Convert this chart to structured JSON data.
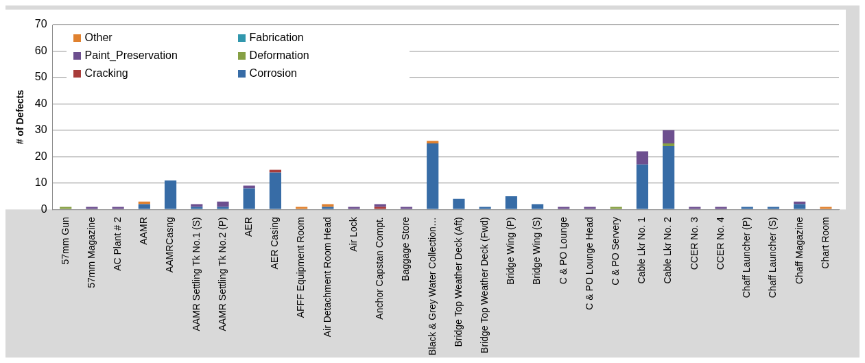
{
  "chart_data": {
    "type": "bar",
    "stacked": true,
    "ylabel": "# of Defects",
    "ylim": [
      0,
      70
    ],
    "yticks": [
      0,
      10,
      20,
      30,
      40,
      50,
      60,
      70
    ],
    "grid": "y",
    "legend": "top left",
    "categories": [
      "57mm Gun",
      "57mm Magazine",
      "AC Plant # 2",
      "AAMR",
      "AAMRCasng",
      "AAMR Settling Tk No.1 (S)",
      "AAMR Settling Tk No.2 (P)",
      "AER",
      "AER Casing",
      "AFFF Equipment Room",
      "Air Detachment Room Head",
      "Air Lock",
      "Anchor Capstan Compt.",
      "Baggage Store",
      "Black & Grey Water Collection…",
      "Bridge Top Weather Deck (Aft)",
      "Bridge Top Weather Deck (Fwd)",
      "Bridge Wing (P)",
      "Bridge Wing (S)",
      "C & PO Lounge",
      "C & PO Lounge Head",
      "C & PO Servery",
      "Cable Lkr No. 1",
      "Cable Lkr No. 2",
      "CCER No. 3",
      "CCER No. 4",
      "Chaff Launcher (P)",
      "Chaff Launcher (S)",
      "Chaff Magazine",
      "Chart Room"
    ],
    "series": [
      {
        "name": "Corrosion",
        "color": "#376ca6",
        "values": [
          0,
          0,
          0,
          2,
          11,
          1,
          1,
          8,
          14,
          0,
          1,
          0,
          0,
          0,
          25,
          4,
          1,
          5,
          2,
          0,
          0,
          0,
          17,
          24,
          0,
          0,
          1,
          1,
          2,
          0
        ]
      },
      {
        "name": "Cracking",
        "color": "#a83c3a",
        "values": [
          0,
          0,
          0,
          0,
          0,
          0,
          0,
          0,
          1,
          0,
          0,
          0,
          1,
          0,
          0,
          0,
          0,
          0,
          0,
          0,
          0,
          0,
          0,
          0,
          0,
          0,
          0,
          0,
          0,
          0
        ]
      },
      {
        "name": "Deformation",
        "color": "#86a044",
        "values": [
          1,
          0,
          0,
          0,
          0,
          0,
          0,
          0,
          0,
          0,
          0,
          0,
          0,
          0,
          0,
          0,
          0,
          0,
          0,
          0,
          0,
          1,
          0,
          1,
          0,
          0,
          0,
          0,
          0,
          0
        ]
      },
      {
        "name": "Paint_Preservation",
        "color": "#6d4f8f",
        "values": [
          0,
          1,
          1,
          0,
          0,
          1,
          2,
          1,
          0,
          0,
          0,
          1,
          1,
          1,
          0,
          0,
          0,
          0,
          0,
          1,
          1,
          0,
          5,
          5,
          1,
          1,
          0,
          0,
          1,
          0
        ]
      },
      {
        "name": "Fabrication",
        "color": "#3197ad",
        "values": [
          0,
          0,
          0,
          0,
          0,
          0,
          0,
          0,
          0,
          0,
          0,
          0,
          0,
          0,
          0,
          0,
          0,
          0,
          0,
          0,
          0,
          0,
          0,
          0,
          0,
          0,
          0,
          0,
          0,
          0
        ]
      },
      {
        "name": "Other",
        "color": "#e0812f",
        "values": [
          0,
          0,
          0,
          1,
          0,
          0,
          0,
          0,
          0,
          1,
          1,
          0,
          0,
          0,
          1,
          0,
          0,
          0,
          0,
          0,
          0,
          0,
          0,
          0,
          0,
          0,
          0,
          0,
          0,
          1
        ]
      }
    ]
  }
}
